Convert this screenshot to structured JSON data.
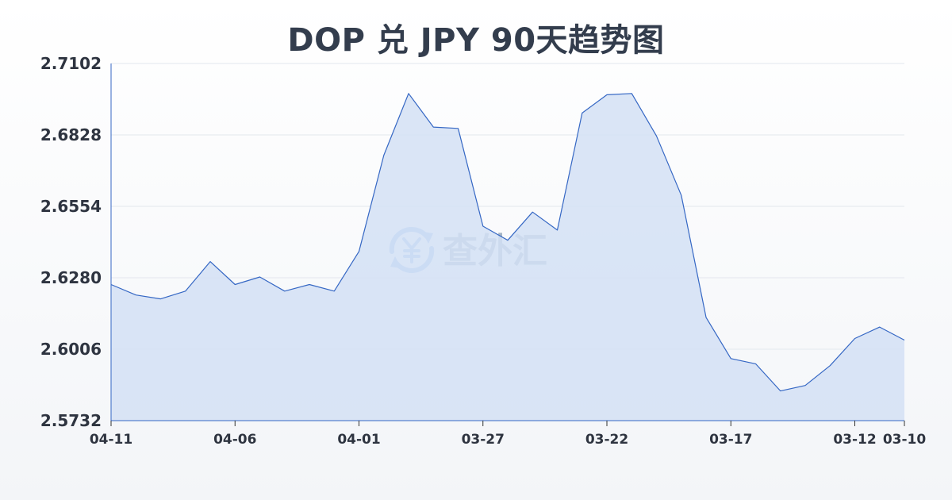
{
  "chart_data": {
    "type": "area",
    "title": "DOP 兑 JPY 90天趋势图",
    "ylim": [
      2.5732,
      2.7102
    ],
    "y_ticks": [
      "2.7102",
      "2.6828",
      "2.6554",
      "2.6280",
      "2.6006",
      "2.5732"
    ],
    "x_ticks": [
      {
        "label": "04-11",
        "index": 0
      },
      {
        "label": "04-06",
        "index": 5
      },
      {
        "label": "04-01",
        "index": 10
      },
      {
        "label": "03-27",
        "index": 15
      },
      {
        "label": "03-22",
        "index": 20
      },
      {
        "label": "03-17",
        "index": 25
      },
      {
        "label": "03-12",
        "index": 30
      },
      {
        "label": "03-10",
        "index": 32
      }
    ],
    "x_index_max": 32,
    "series": [
      {
        "values": [
          2.6254,
          2.6214,
          2.6199,
          2.6229,
          2.6342,
          2.6254,
          2.6283,
          2.6229,
          2.6254,
          2.6229,
          2.6381,
          2.675,
          2.6987,
          2.6858,
          2.6853,
          2.6478,
          2.6424,
          2.6532,
          2.6463,
          2.6912,
          2.6982,
          2.6987,
          2.6824,
          2.6596,
          2.6128,
          2.597,
          2.595,
          2.5846,
          2.5867,
          2.5943,
          2.6047,
          2.6091,
          2.6041
        ]
      }
    ],
    "grid": true,
    "line_color": "#3567c4",
    "fill_color": "#d4e0f5"
  },
  "watermark": {
    "text": "查外汇",
    "icon": "yen-exchange-icon",
    "color": "#4d8fe8"
  }
}
